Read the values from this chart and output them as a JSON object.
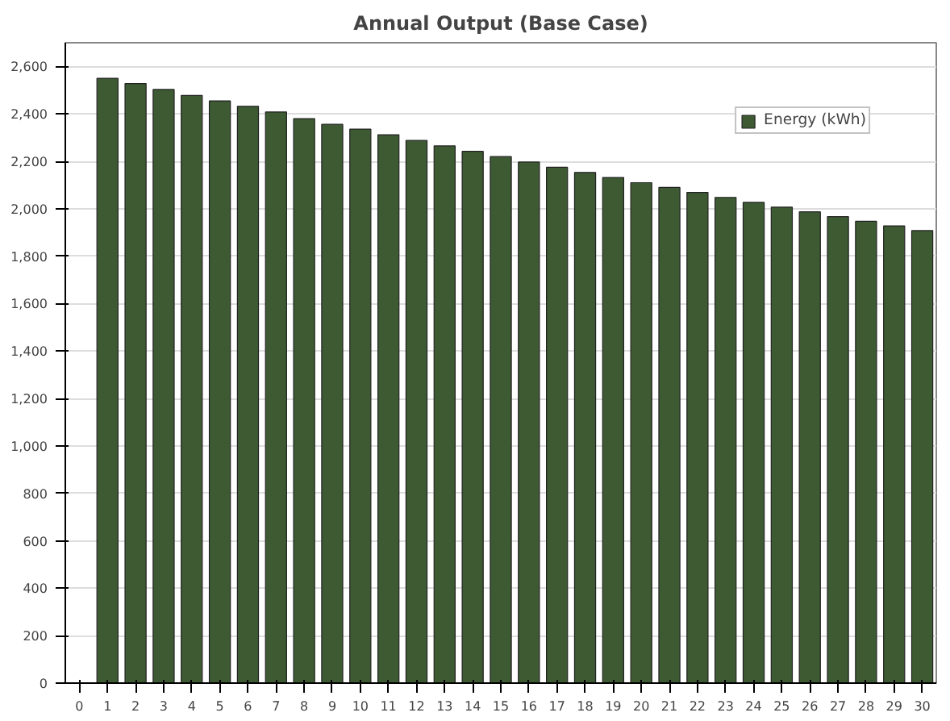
{
  "chart_data": {
    "type": "bar",
    "title": "Annual Output (Base Case)",
    "x": [
      1,
      2,
      3,
      4,
      5,
      6,
      7,
      8,
      9,
      10,
      11,
      12,
      13,
      14,
      15,
      16,
      17,
      18,
      19,
      20,
      21,
      22,
      23,
      24,
      25,
      26,
      27,
      28,
      29,
      30
    ],
    "series": [
      {
        "name": "Energy (kWh)",
        "color": "#3d5a33",
        "values": [
          2550,
          2528,
          2503,
          2478,
          2455,
          2432,
          2408,
          2380,
          2356,
          2336,
          2312,
          2288,
          2265,
          2242,
          2220,
          2197,
          2175,
          2153,
          2132,
          2110,
          2090,
          2069,
          2048,
          2027,
          2007,
          1987,
          1967,
          1947,
          1928,
          1908
        ]
      }
    ],
    "xlim": [
      -0.5,
      30.5
    ],
    "xticks": [
      0,
      1,
      2,
      3,
      4,
      5,
      6,
      7,
      8,
      9,
      10,
      11,
      12,
      13,
      14,
      15,
      16,
      17,
      18,
      19,
      20,
      21,
      22,
      23,
      24,
      25,
      26,
      27,
      28,
      29,
      30
    ],
    "ylim": [
      0,
      2700
    ],
    "yticks": [
      {
        "value": 0,
        "label": "0"
      },
      {
        "value": 200,
        "label": "200"
      },
      {
        "value": 400,
        "label": "400"
      },
      {
        "value": 600,
        "label": "600"
      },
      {
        "value": 800,
        "label": "800"
      },
      {
        "value": 1000,
        "label": "1,000"
      },
      {
        "value": 1200,
        "label": "1,200"
      },
      {
        "value": 1400,
        "label": "1,400"
      },
      {
        "value": 1600,
        "label": "1,600"
      },
      {
        "value": 1800,
        "label": "1,800"
      },
      {
        "value": 2000,
        "label": "2,000"
      },
      {
        "value": 2200,
        "label": "2,200"
      },
      {
        "value": 2400,
        "label": "2,400"
      },
      {
        "value": 2600,
        "label": "2,600"
      }
    ],
    "grid": "y",
    "legend": "top right"
  }
}
